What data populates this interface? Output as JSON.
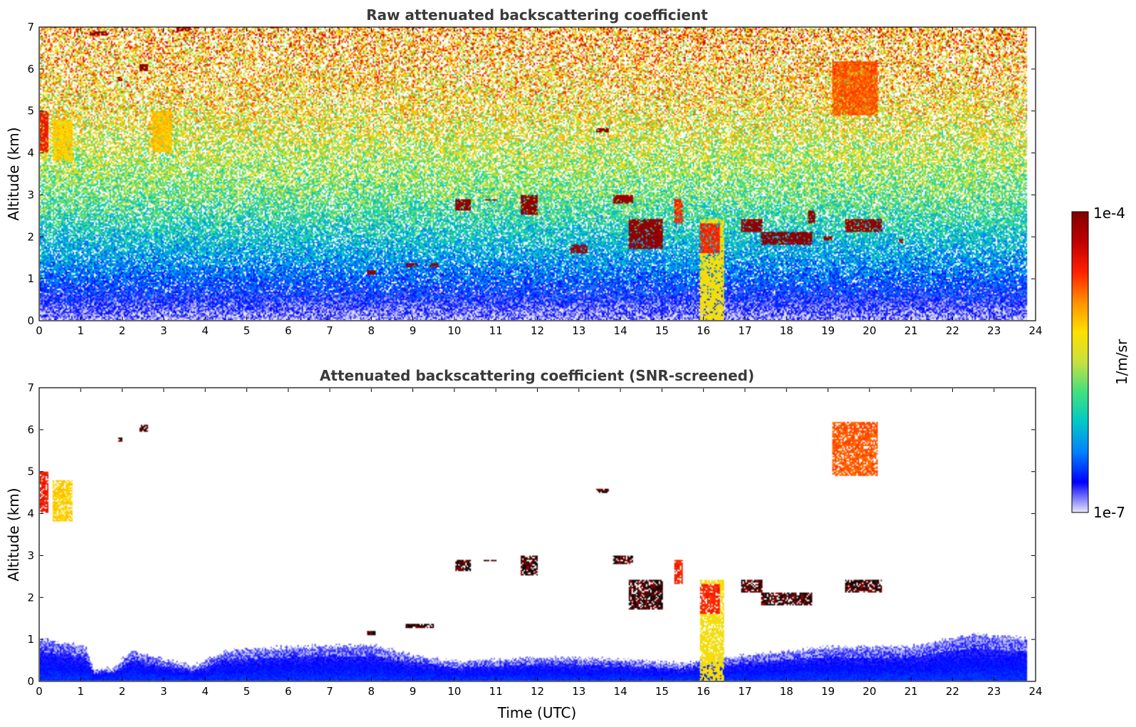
{
  "chart_data": [
    {
      "type": "heatmap",
      "title": "Raw attenuated backscattering coefficient",
      "xlabel": "",
      "ylabel": "Altitude (km)",
      "xlim": [
        0,
        24
      ],
      "ylim": [
        0,
        7
      ],
      "x_ticks": [
        "0",
        "1",
        "2",
        "3",
        "4",
        "5",
        "6",
        "7",
        "8",
        "9",
        "10",
        "11",
        "12",
        "13",
        "14",
        "15",
        "16",
        "17",
        "18",
        "19",
        "20",
        "21",
        "22",
        "23",
        "24"
      ],
      "y_ticks": [
        "0",
        "1",
        "2",
        "3",
        "4",
        "5",
        "6",
        "7"
      ],
      "data_end_time": 23.8,
      "background_profile": [
        {
          "altitude": 0.0,
          "level": 0.03
        },
        {
          "altitude": 0.5,
          "level": 0.1
        },
        {
          "altitude": 1.0,
          "level": 0.18
        },
        {
          "altitude": 2.0,
          "level": 0.3
        },
        {
          "altitude": 3.0,
          "level": 0.42
        },
        {
          "altitude": 4.0,
          "level": 0.5
        },
        {
          "altitude": 5.0,
          "level": 0.58
        },
        {
          "altitude": 6.0,
          "level": 0.63
        },
        {
          "altitude": 7.0,
          "level": 0.68
        }
      ],
      "features": [
        {
          "t0": 0.0,
          "t1": 0.2,
          "z0": 4.0,
          "z1": 5.0,
          "level": 0.82
        },
        {
          "t0": 0.3,
          "t1": 0.8,
          "z0": 3.8,
          "z1": 4.8,
          "level": 0.62
        },
        {
          "t0": 1.2,
          "t1": 1.6,
          "z0": 6.8,
          "z1": 6.9,
          "level": 0.97
        },
        {
          "t0": 1.9,
          "t1": 2.0,
          "z0": 5.7,
          "z1": 5.8,
          "level": 0.97
        },
        {
          "t0": 2.4,
          "t1": 2.6,
          "z0": 5.95,
          "z1": 6.1,
          "level": 0.97
        },
        {
          "t0": 3.3,
          "t1": 3.6,
          "z0": 6.9,
          "z1": 7.0,
          "level": 0.95
        },
        {
          "t0": 2.7,
          "t1": 3.2,
          "z0": 4.0,
          "z1": 5.0,
          "level": 0.64
        },
        {
          "t0": 7.9,
          "t1": 8.1,
          "z0": 1.1,
          "z1": 1.2,
          "level": 0.97
        },
        {
          "t0": 8.8,
          "t1": 9.1,
          "z0": 1.25,
          "z1": 1.35,
          "level": 0.97
        },
        {
          "t0": 9.4,
          "t1": 9.6,
          "z0": 1.25,
          "z1": 1.35,
          "level": 0.97
        },
        {
          "t0": 10.0,
          "t1": 10.4,
          "z0": 2.6,
          "z1": 2.9,
          "level": 0.97
        },
        {
          "t0": 10.7,
          "t1": 11.0,
          "z0": 2.85,
          "z1": 2.9,
          "level": 0.95
        },
        {
          "t0": 11.6,
          "t1": 12.0,
          "z0": 2.5,
          "z1": 3.0,
          "level": 0.97
        },
        {
          "t0": 12.8,
          "t1": 13.2,
          "z0": 1.6,
          "z1": 1.8,
          "level": 0.95
        },
        {
          "t0": 13.4,
          "t1": 13.7,
          "z0": 4.5,
          "z1": 4.6,
          "level": 0.97
        },
        {
          "t0": 13.8,
          "t1": 14.3,
          "z0": 2.8,
          "z1": 3.0,
          "level": 0.96
        },
        {
          "t0": 14.2,
          "t1": 15.0,
          "z0": 1.7,
          "z1": 2.4,
          "level": 0.97
        },
        {
          "t0": 15.3,
          "t1": 15.5,
          "z0": 2.3,
          "z1": 2.9,
          "level": 0.8
        },
        {
          "t0": 15.9,
          "t1": 16.5,
          "z0": 0.0,
          "z1": 2.4,
          "level": 0.58
        },
        {
          "t0": 15.9,
          "t1": 16.4,
          "z0": 1.6,
          "z1": 2.3,
          "level": 0.8
        },
        {
          "t0": 16.9,
          "t1": 17.4,
          "z0": 2.1,
          "z1": 2.4,
          "level": 0.97
        },
        {
          "t0": 17.4,
          "t1": 18.6,
          "z0": 1.8,
          "z1": 2.1,
          "level": 0.98
        },
        {
          "t0": 18.5,
          "t1": 18.7,
          "z0": 2.3,
          "z1": 2.6,
          "level": 0.96
        },
        {
          "t0": 18.9,
          "t1": 19.1,
          "z0": 1.9,
          "z1": 2.0,
          "level": 0.96
        },
        {
          "t0": 19.4,
          "t1": 20.3,
          "z0": 2.1,
          "z1": 2.4,
          "level": 0.96
        },
        {
          "t0": 20.7,
          "t1": 20.8,
          "z0": 1.85,
          "z1": 1.95,
          "level": 0.95
        },
        {
          "t0": 19.1,
          "t1": 20.2,
          "z0": 4.9,
          "z1": 6.2,
          "level": 0.75
        }
      ]
    },
    {
      "type": "heatmap",
      "title": "Attenuated backscattering coefficient (SNR-screened)",
      "xlabel": "Time (UTC)",
      "ylabel": "Altitude (km)",
      "xlim": [
        0,
        24
      ],
      "ylim": [
        0,
        7
      ],
      "x_ticks": [
        "0",
        "1",
        "2",
        "3",
        "4",
        "5",
        "6",
        "7",
        "8",
        "9",
        "10",
        "11",
        "12",
        "13",
        "14",
        "15",
        "16",
        "17",
        "18",
        "19",
        "20",
        "21",
        "22",
        "23",
        "24"
      ],
      "y_ticks": [
        "0",
        "1",
        "2",
        "3",
        "4",
        "5",
        "6",
        "7"
      ],
      "data_end_time": 23.8,
      "boundary_layer_top": [
        {
          "time": 0.0,
          "altitude": 1.0
        },
        {
          "time": 1.1,
          "altitude": 0.8
        },
        {
          "time": 1.3,
          "altitude": 0.25
        },
        {
          "time": 1.8,
          "altitude": 0.3
        },
        {
          "time": 2.2,
          "altitude": 0.7
        },
        {
          "time": 3.0,
          "altitude": 0.5
        },
        {
          "time": 3.7,
          "altitude": 0.35
        },
        {
          "time": 4.5,
          "altitude": 0.7
        },
        {
          "time": 6.0,
          "altitude": 0.8
        },
        {
          "time": 8.0,
          "altitude": 0.85
        },
        {
          "time": 9.0,
          "altitude": 0.6
        },
        {
          "time": 10.0,
          "altitude": 0.45
        },
        {
          "time": 12.0,
          "altitude": 0.55
        },
        {
          "time": 14.0,
          "altitude": 0.5
        },
        {
          "time": 15.5,
          "altitude": 0.4
        },
        {
          "time": 17.0,
          "altitude": 0.6
        },
        {
          "time": 19.0,
          "altitude": 0.8
        },
        {
          "time": 21.0,
          "altitude": 0.8
        },
        {
          "time": 22.5,
          "altitude": 1.1
        },
        {
          "time": 23.8,
          "altitude": 1.0
        }
      ],
      "features": [
        {
          "t0": 0.0,
          "t1": 0.2,
          "z0": 4.0,
          "z1": 5.0,
          "level": 0.82
        },
        {
          "t0": 0.3,
          "t1": 0.8,
          "z0": 3.8,
          "z1": 4.8,
          "level": 0.62
        },
        {
          "t0": 1.9,
          "t1": 2.0,
          "z0": 5.7,
          "z1": 5.8,
          "level": 1.0
        },
        {
          "t0": 2.4,
          "t1": 2.6,
          "z0": 5.95,
          "z1": 6.1,
          "level": 1.0
        },
        {
          "t0": 7.9,
          "t1": 8.1,
          "z0": 1.1,
          "z1": 1.2,
          "level": 1.0
        },
        {
          "t0": 8.8,
          "t1": 9.5,
          "z0": 1.25,
          "z1": 1.35,
          "level": 1.0
        },
        {
          "t0": 10.0,
          "t1": 10.4,
          "z0": 2.6,
          "z1": 2.9,
          "level": 1.0
        },
        {
          "t0": 10.7,
          "t1": 11.0,
          "z0": 2.85,
          "z1": 2.9,
          "level": 1.0
        },
        {
          "t0": 11.6,
          "t1": 12.0,
          "z0": 2.5,
          "z1": 3.0,
          "level": 1.0
        },
        {
          "t0": 13.4,
          "t1": 13.7,
          "z0": 4.5,
          "z1": 4.6,
          "level": 1.0
        },
        {
          "t0": 13.8,
          "t1": 14.3,
          "z0": 2.8,
          "z1": 3.0,
          "level": 1.0
        },
        {
          "t0": 14.2,
          "t1": 15.0,
          "z0": 1.7,
          "z1": 2.4,
          "level": 1.0
        },
        {
          "t0": 15.3,
          "t1": 15.5,
          "z0": 2.3,
          "z1": 2.9,
          "level": 0.8
        },
        {
          "t0": 15.9,
          "t1": 16.5,
          "z0": 0.0,
          "z1": 2.4,
          "level": 0.58
        },
        {
          "t0": 15.9,
          "t1": 16.4,
          "z0": 1.6,
          "z1": 2.3,
          "level": 0.8
        },
        {
          "t0": 16.9,
          "t1": 17.4,
          "z0": 2.1,
          "z1": 2.4,
          "level": 1.0
        },
        {
          "t0": 17.4,
          "t1": 18.6,
          "z0": 1.8,
          "z1": 2.1,
          "level": 1.0
        },
        {
          "t0": 19.4,
          "t1": 20.3,
          "z0": 2.1,
          "z1": 2.4,
          "level": 1.0
        },
        {
          "t0": 19.1,
          "t1": 20.2,
          "z0": 4.9,
          "z1": 6.2,
          "level": 0.75
        }
      ]
    }
  ],
  "colorbar": {
    "label": "1/m/sr",
    "max_label": "1e-4",
    "min_label": "1e-7",
    "colormap": [
      "#e8e8f8",
      "#0000ff",
      "#0080ff",
      "#00c8c8",
      "#40e080",
      "#c8e040",
      "#ffe000",
      "#ff9000",
      "#ff2000",
      "#c00000",
      "#800000"
    ]
  }
}
